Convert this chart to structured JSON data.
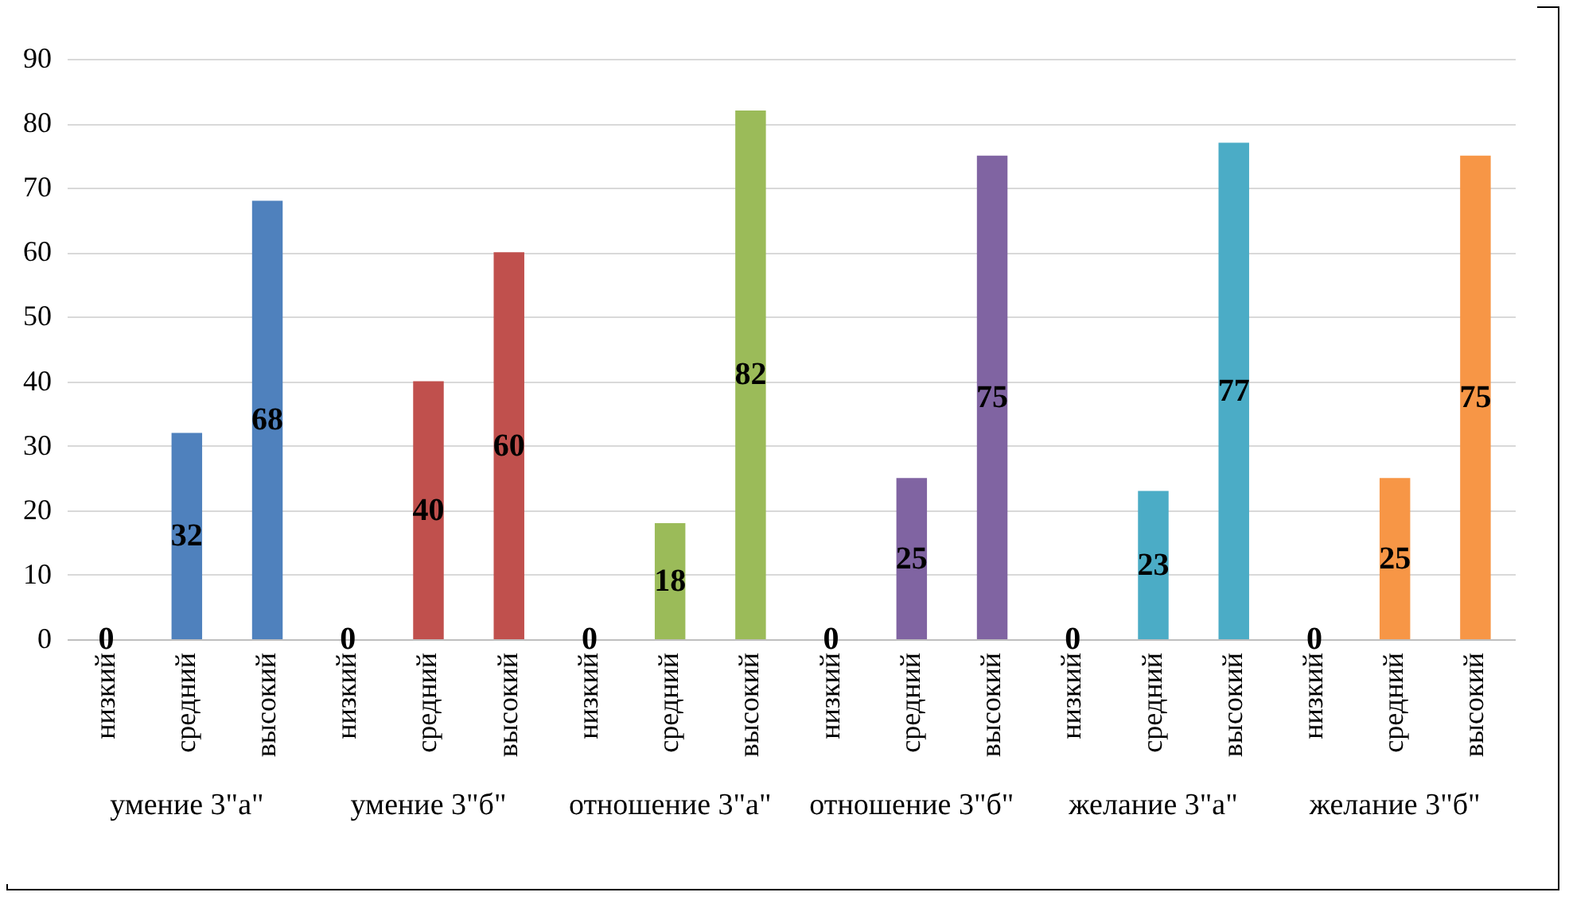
{
  "chart_data": {
    "type": "bar",
    "categories": [
      "низкий",
      "средний",
      "высокий",
      "низкий",
      "средний",
      "высокий",
      "низкий",
      "средний",
      "высокий",
      "низкий",
      "средний",
      "высокий",
      "низкий",
      "средний",
      "высокий",
      "низкий",
      "средний",
      "высокий"
    ],
    "series": [
      {
        "color": "#4f81bd",
        "values": [
          0,
          32,
          68,
          null,
          null,
          null,
          null,
          null,
          null,
          null,
          null,
          null,
          null,
          null,
          null,
          null,
          null,
          null
        ]
      },
      {
        "color": "#c0504d",
        "values": [
          null,
          null,
          null,
          0,
          40,
          60,
          null,
          null,
          null,
          null,
          null,
          null,
          null,
          null,
          null,
          null,
          null,
          null
        ]
      },
      {
        "color": "#9bbb59",
        "values": [
          null,
          null,
          null,
          null,
          null,
          null,
          0,
          18,
          82,
          null,
          null,
          null,
          null,
          null,
          null,
          null,
          null,
          null
        ]
      },
      {
        "color": "#8064a2",
        "values": [
          null,
          null,
          null,
          null,
          null,
          null,
          null,
          null,
          null,
          0,
          25,
          75,
          null,
          null,
          null,
          null,
          null,
          null
        ]
      },
      {
        "color": "#4bacc6",
        "values": [
          null,
          null,
          null,
          null,
          null,
          null,
          null,
          null,
          null,
          null,
          null,
          null,
          0,
          23,
          77,
          null,
          null,
          null
        ]
      },
      {
        "color": "#f79646",
        "values": [
          null,
          null,
          null,
          null,
          null,
          null,
          null,
          null,
          null,
          null,
          null,
          null,
          null,
          null,
          null,
          0,
          25,
          75
        ]
      }
    ],
    "annotations": [
      "умение 3\"а\"",
      "умение 3\"б\"",
      "отношение 3\"а\"",
      "отношение 3\"б\"",
      "желание 3\"а\"",
      "желание 3\"б\""
    ],
    "ylim": [
      0,
      90
    ],
    "yticks": [
      0,
      10,
      20,
      30,
      40,
      50,
      60,
      70,
      80,
      90
    ],
    "grid": "y",
    "data_labels": true
  }
}
